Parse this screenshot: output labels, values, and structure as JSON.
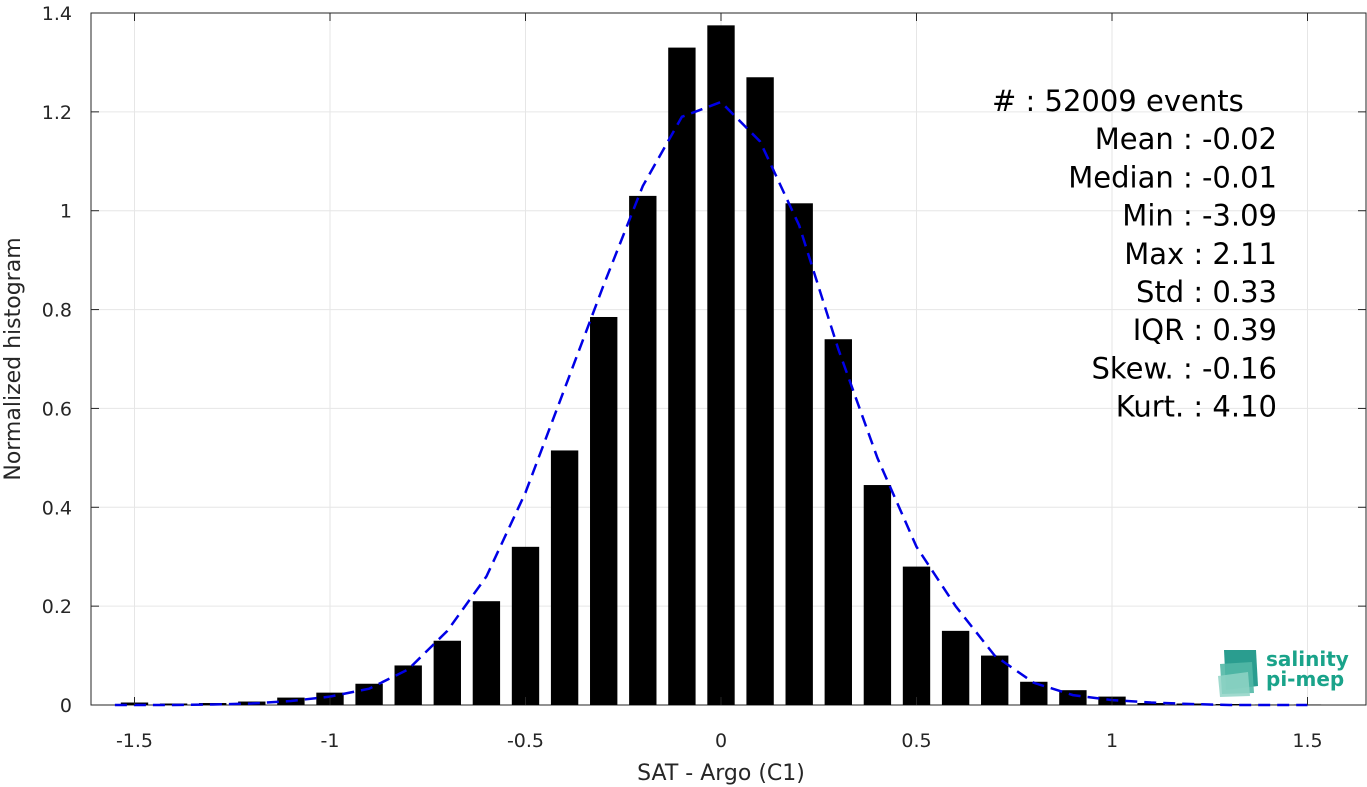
{
  "chart_data": {
    "type": "bar",
    "xlabel": "SAT - Argo (C1)",
    "ylabel": "Normalized histogram",
    "xlim": [
      -1.6,
      1.6
    ],
    "ylim": [
      0,
      1.4
    ],
    "xticks": [
      -1.5,
      -1,
      -0.5,
      0,
      0.5,
      1,
      1.5
    ],
    "xtick_labels": [
      "-1.5",
      "-1",
      "-0.5",
      "0",
      "0.5",
      "1",
      "1.5"
    ],
    "yticks": [
      0,
      0.2,
      0.4,
      0.6,
      0.8,
      1,
      1.2,
      1.4
    ],
    "ytick_labels": [
      "0",
      "0.2",
      "0.4",
      "0.6",
      "0.8",
      "1",
      "1.2",
      "1.4"
    ],
    "grid": true,
    "bar_width": 0.07,
    "categories": [
      -1.5,
      -1.4,
      -1.3,
      -1.2,
      -1.1,
      -1.0,
      -0.9,
      -0.8,
      -0.7,
      -0.6,
      -0.5,
      -0.4,
      -0.3,
      -0.2,
      -0.1,
      0.0,
      0.1,
      0.2,
      0.3,
      0.4,
      0.5,
      0.6,
      0.7,
      0.8,
      0.9,
      1.0,
      1.1,
      1.2,
      1.3,
      1.4,
      1.5
    ],
    "values": [
      0.005,
      0.003,
      0.004,
      0.007,
      0.015,
      0.025,
      0.043,
      0.08,
      0.13,
      0.21,
      0.32,
      0.515,
      0.785,
      1.03,
      1.33,
      1.375,
      1.27,
      1.015,
      0.74,
      0.445,
      0.28,
      0.15,
      0.1,
      0.047,
      0.03,
      0.017,
      0.004,
      0.003,
      0.002,
      0.001,
      0.001
    ],
    "bar_color": "#000000",
    "fit": {
      "style": "dashed",
      "color": "#0000e6",
      "x": [
        -1.55,
        -1.4,
        -1.3,
        -1.2,
        -1.1,
        -1.0,
        -0.9,
        -0.8,
        -0.7,
        -0.6,
        -0.5,
        -0.4,
        -0.3,
        -0.2,
        -0.1,
        0.0,
        0.1,
        0.2,
        0.3,
        0.4,
        0.5,
        0.6,
        0.7,
        0.8,
        0.9,
        1.0,
        1.1,
        1.2,
        1.3,
        1.4,
        1.5
      ],
      "y": [
        0.0,
        0.0,
        0.001,
        0.003,
        0.008,
        0.017,
        0.033,
        0.072,
        0.15,
        0.26,
        0.43,
        0.64,
        0.85,
        1.05,
        1.19,
        1.22,
        1.14,
        0.97,
        0.72,
        0.5,
        0.32,
        0.2,
        0.1,
        0.045,
        0.02,
        0.01,
        0.005,
        0.002,
        0.0,
        0.0,
        0.0
      ]
    }
  },
  "stats": [
    {
      "label": "#  : 52009 events",
      "anchor": "start"
    },
    {
      "label": "Mean : -0.02",
      "anchor": "end"
    },
    {
      "label": "Median : -0.01",
      "anchor": "end"
    },
    {
      "label": "Min : -3.09",
      "anchor": "end"
    },
    {
      "label": "Max : 2.11",
      "anchor": "end"
    },
    {
      "label": "Std : 0.33",
      "anchor": "end"
    },
    {
      "label": "IQR : 0.39",
      "anchor": "end"
    },
    {
      "label": "Skew. : -0.16",
      "anchor": "end"
    },
    {
      "label": "Kurt. : 4.10",
      "anchor": "end"
    }
  ],
  "logo": {
    "line1": "salinity",
    "line2": "pi-mep",
    "color": "#1aa38a"
  }
}
